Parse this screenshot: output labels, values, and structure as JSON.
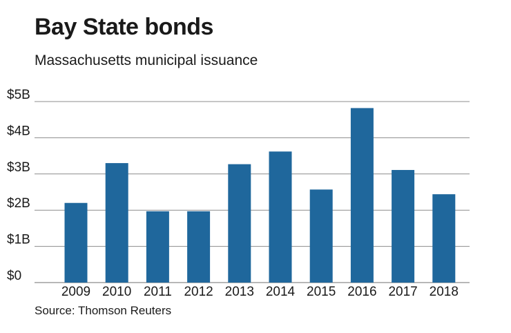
{
  "title": "Bay State bonds",
  "subtitle": "Massachusetts municipal issuance",
  "source": "Source: Thomson Reuters",
  "colors": {
    "bar": "#1f679c",
    "grid": "#8c8c8c",
    "text": "#1a1a1a"
  },
  "chart_data": {
    "type": "bar",
    "title": "Bay State bonds",
    "subtitle": "Massachusetts municipal issuance",
    "xlabel": "",
    "ylabel": "",
    "unit": "billions of dollars",
    "categories": [
      "2009",
      "2010",
      "2011",
      "2012",
      "2013",
      "2014",
      "2015",
      "2016",
      "2017",
      "2018"
    ],
    "values": [
      2.2,
      3.3,
      1.97,
      1.97,
      3.27,
      3.62,
      2.57,
      4.82,
      3.11,
      2.44
    ],
    "ylim": [
      0,
      5
    ],
    "yticks": [
      0,
      1,
      2,
      3,
      4,
      5
    ],
    "ytick_labels": [
      "$0",
      "$1B",
      "$2B",
      "$3B",
      "$4B",
      "$5B"
    ],
    "grid": true,
    "legend": "none"
  }
}
